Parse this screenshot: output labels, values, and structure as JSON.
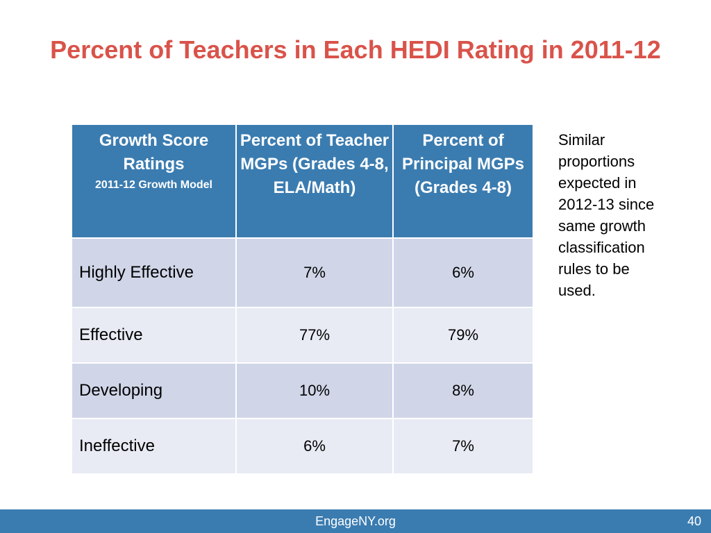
{
  "slide": {
    "title": "Percent of Teachers in Each HEDI Rating in 2011-12"
  },
  "table": {
    "headers": [
      {
        "main": "Growth Score Ratings",
        "sub": "2011-12 Growth Model"
      },
      {
        "main": "Percent of Teacher MGPs (Grades 4-8, ELA/Math)",
        "sub": ""
      },
      {
        "main": "Percent of Principal MGPs (Grades 4-8)",
        "sub": ""
      }
    ],
    "rows": [
      {
        "rating": "Highly Effective",
        "teacher": "7%",
        "principal": "6%"
      },
      {
        "rating": "Effective",
        "teacher": "77%",
        "principal": "79%"
      },
      {
        "rating": "Developing",
        "teacher": "10%",
        "principal": "8%"
      },
      {
        "rating": "Ineffective",
        "teacher": "6%",
        "principal": "7%"
      }
    ]
  },
  "note": {
    "text": "Similar proportions expected in 2012-13 since same growth classification rules to be used."
  },
  "footer": {
    "site": "EngageNY.org",
    "page_number": "40"
  },
  "colors": {
    "title": "#d9534a",
    "header_bg": "#3b7cb0",
    "row_odd": "#d0d6e8",
    "row_even": "#e8ebf4",
    "footer_bg": "#3b7cb0"
  }
}
